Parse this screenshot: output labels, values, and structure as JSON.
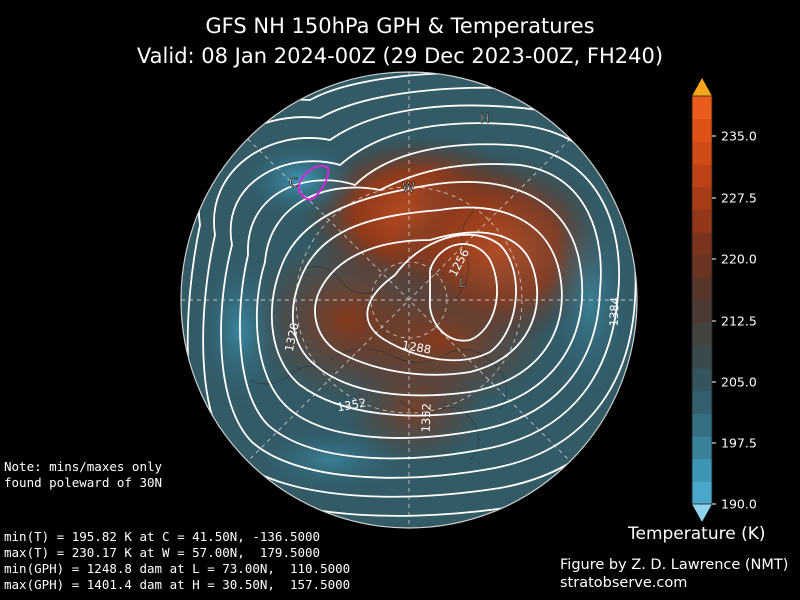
{
  "title": {
    "line1": "GFS NH 150hPa GPH & Temperatures",
    "line2": "Valid: 08 Jan 2024-00Z  (29 Dec 2023-00Z, FH240)"
  },
  "map": {
    "markers": [
      {
        "label": "H",
        "meaning": "max GPH"
      },
      {
        "label": "W",
        "meaning": "max T"
      },
      {
        "label": "L",
        "meaning": "min GPH"
      },
      {
        "label": "C",
        "meaning": "min T"
      }
    ],
    "contour_labels": [
      "1256",
      "1288",
      "1320",
      "1352",
      "1352",
      "1384"
    ],
    "colors": {
      "cold": "#3d8fae",
      "warm": "#b84a22",
      "cold_contour": "#e020e0",
      "contour": "#ffffff"
    }
  },
  "notes": {
    "line1": "Note: mins/maxes only",
    "line2": "found poleward of 30N"
  },
  "stats": [
    "min(T) = 195.82 K at C = 41.50N, -136.5000",
    "max(T) = 230.17 K at W = 57.00N,  179.5000",
    "min(GPH) = 1248.8 dam at L = 73.00N,  110.5000",
    "max(GPH) = 1401.4 dam at H = 30.50N,  157.5000"
  ],
  "colorbar": {
    "label": "Temperature (K)",
    "ticks": [
      "235.0",
      "227.5",
      "220.0",
      "212.5",
      "205.0",
      "197.5",
      "190.0"
    ],
    "colors": [
      "#4aa7c9",
      "#3f95b4",
      "#3a819a",
      "#366f83",
      "#335f6e",
      "#34535c",
      "#3a4a4c",
      "#42423f",
      "#4a3a33",
      "#573529",
      "#6a3322",
      "#7c331d",
      "#923719",
      "#a83c17",
      "#bd4316",
      "#d04b17",
      "#de5218",
      "#e95c1b"
    ],
    "extend_low_color": "#8fd3ec",
    "extend_high_color": "#f7a51a"
  },
  "credit": {
    "line1": "Figure by Z. D. Lawrence (NMT)",
    "line2": "stratobserve.com"
  }
}
